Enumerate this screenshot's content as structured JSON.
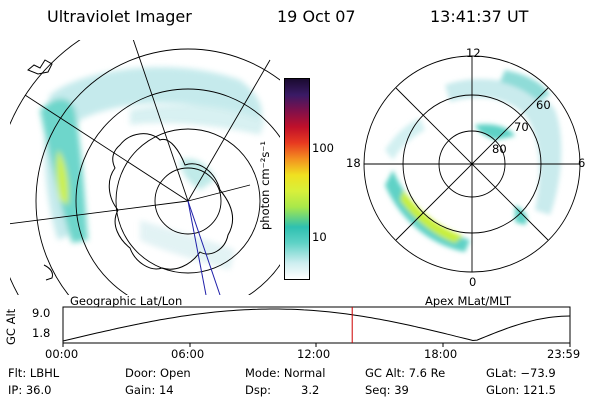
{
  "header": {
    "instrument": "Ultraviolet Imager",
    "date": "19 Oct 07",
    "time": "13:41:37 UT"
  },
  "geographic_panel": {
    "label": "Geographic Lat/Lon"
  },
  "apex_panel": {
    "label": "Apex MLat/MLT",
    "mlt_labels": [
      "12",
      "18",
      "6",
      "0"
    ],
    "mlat_labels": [
      "60",
      "70",
      "80"
    ]
  },
  "colorbar": {
    "unit_label": "photon cm⁻²s⁻¹",
    "tick_labels": [
      "100",
      "10"
    ]
  },
  "altitude_plot": {
    "ylabel": "GC Alt",
    "y_ticks": [
      "9.0",
      "1.8"
    ],
    "x_ticks": [
      "00:00",
      "06:00",
      "12:00",
      "18:00",
      "23:59"
    ],
    "current_time_hours": 13.69
  },
  "status": {
    "filter": "Flt: LBHL",
    "door": "Door: Open",
    "mode": "Mode: Normal",
    "gc_alt": "GC Alt: 7.6 Re",
    "glat": "GLat: −73.9",
    "ip": "IP: 36.0",
    "gain": "Gain: 14",
    "dsp_label": "Dsp:",
    "dsp_value": "3.2",
    "seq": "Seq: 39",
    "glon": "GLon: 121.5"
  },
  "colors": {
    "background": "#ffffff",
    "foreground": "#000000",
    "time_marker": "#cc0000",
    "meridian_blue": "#2020aa",
    "aurora_low": "#bfe8ea",
    "aurora_mid": "#5fd2c6",
    "aurora_high": "#c8ef3a"
  }
}
